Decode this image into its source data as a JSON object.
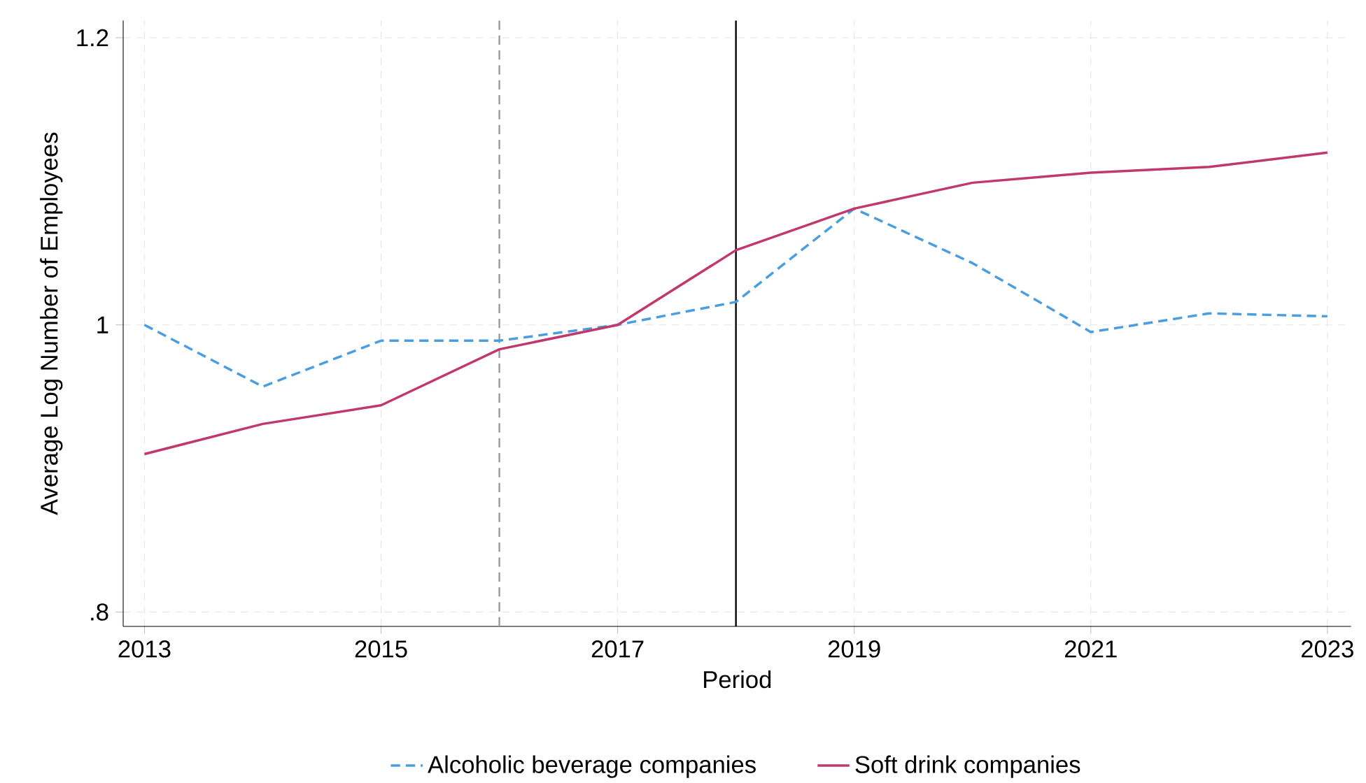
{
  "chart_data": {
    "type": "line",
    "xlabel": "Period",
    "ylabel": "Average Log Number of Employees",
    "x": [
      2013,
      2014,
      2015,
      2016,
      2017,
      2018,
      2019,
      2020,
      2021,
      2022,
      2023
    ],
    "series": [
      {
        "name": "Alcoholic beverage companies",
        "color": "#4a9ee0",
        "line_style": "dashed",
        "values": [
          1.0,
          0.957,
          0.989,
          0.989,
          1.0,
          1.016,
          1.081,
          1.043,
          0.995,
          1.008,
          1.006
        ]
      },
      {
        "name": "Soft drink companies",
        "color": "#c0386e",
        "line_style": "solid",
        "values": [
          0.91,
          0.931,
          0.944,
          0.983,
          1.0,
          1.052,
          1.081,
          1.099,
          1.106,
          1.11,
          1.12
        ]
      }
    ],
    "xlim": [
      2012.82,
      2023.2
    ],
    "ylim": [
      0.79,
      1.212
    ],
    "xticks": [
      2013,
      2015,
      2017,
      2019,
      2021,
      2023
    ],
    "yticks": [
      {
        "value": 0.8,
        "label": ".8"
      },
      1,
      {
        "value": 1.2,
        "label": "1.2"
      }
    ],
    "ref_lines": [
      {
        "axis": "x",
        "value": 2016,
        "color": "#9a9a9a",
        "line_style": "dashed"
      },
      {
        "axis": "x",
        "value": 2018,
        "color": "#000000",
        "line_style": "solid"
      }
    ],
    "grid": true,
    "legend": "bottom",
    "marker": "none"
  }
}
